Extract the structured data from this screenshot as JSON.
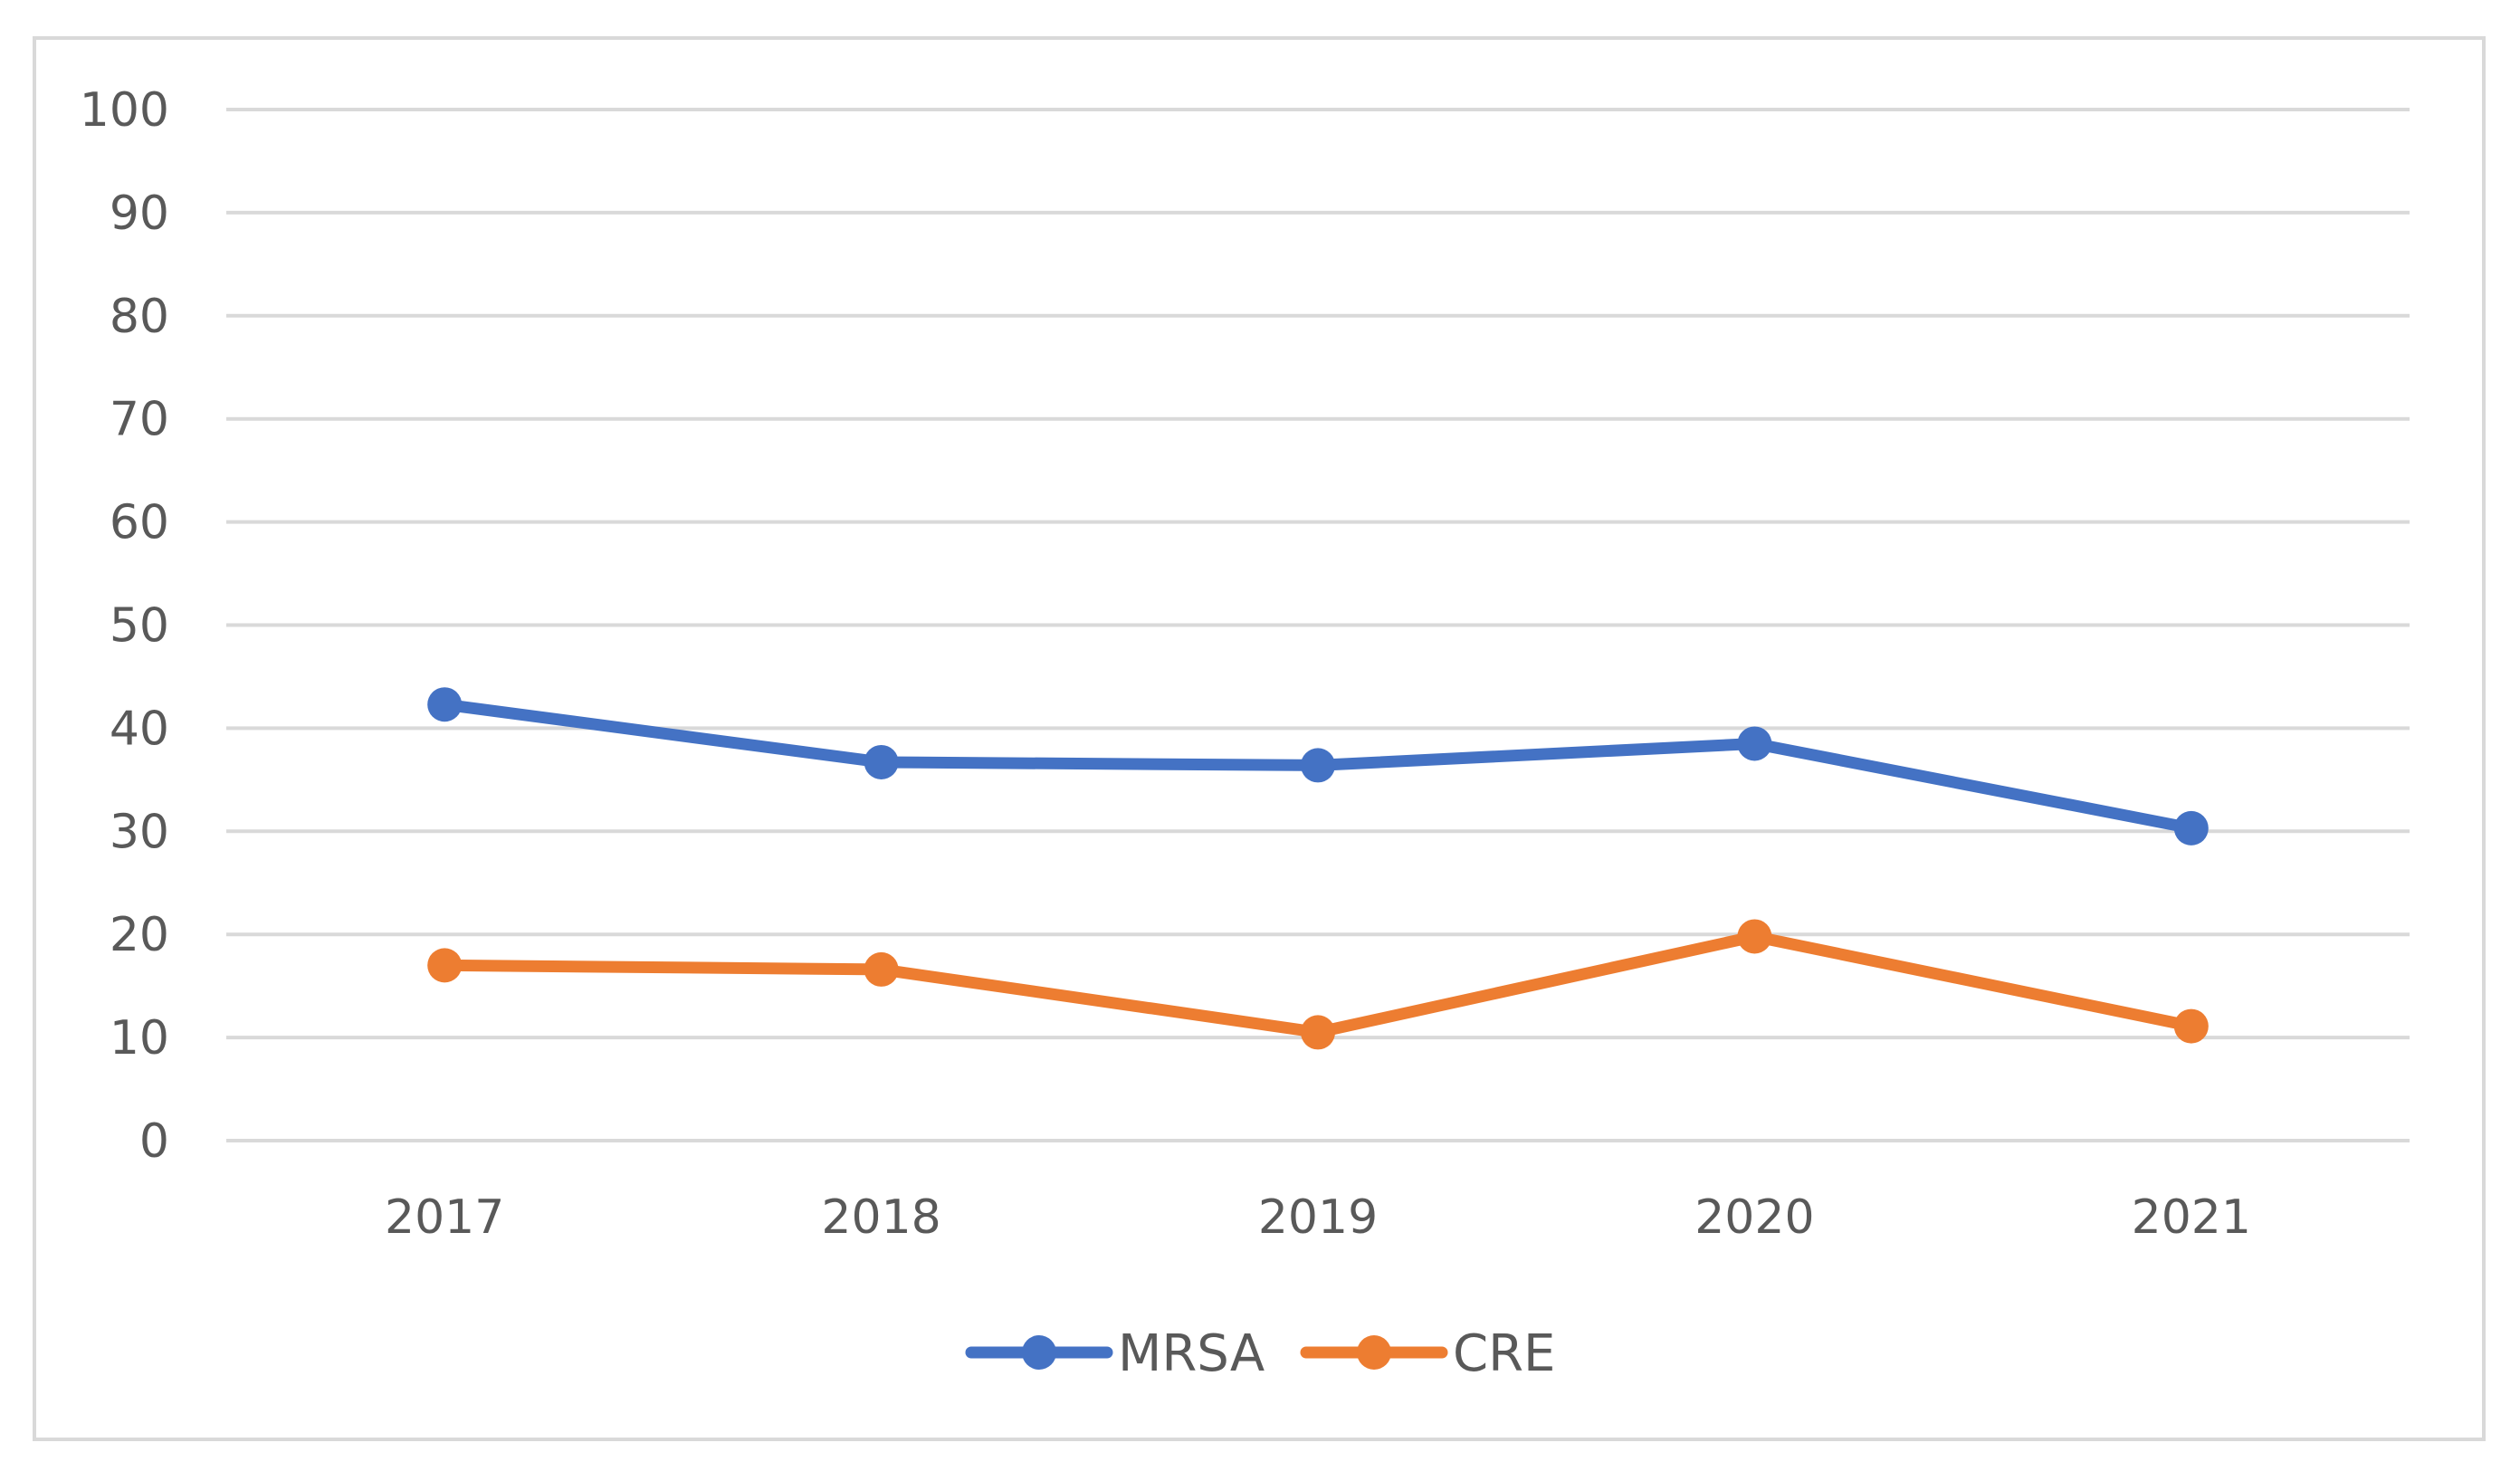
{
  "chart_data": {
    "type": "line",
    "title": "",
    "xlabel": "",
    "ylabel": "",
    "categories": [
      "2017",
      "2018",
      "2019",
      "2020",
      "2021"
    ],
    "ylim": [
      0,
      100
    ],
    "yticks": [
      0,
      10,
      20,
      30,
      40,
      50,
      60,
      70,
      80,
      90,
      100
    ],
    "grid": true,
    "legend_position": "bottom",
    "series": [
      {
        "name": "MRSA",
        "color": "#4472c4",
        "values": [
          42.3,
          36.7,
          36.4,
          38.5,
          30.3
        ]
      },
      {
        "name": "CRE",
        "color": "#ed7d31",
        "values": [
          17.0,
          16.6,
          10.5,
          19.8,
          11.1
        ]
      }
    ]
  }
}
